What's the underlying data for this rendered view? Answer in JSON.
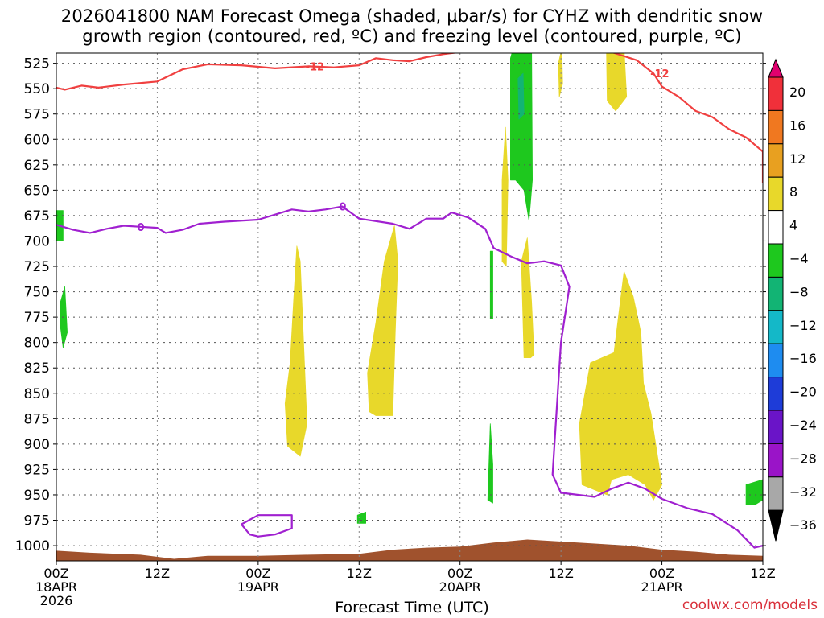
{
  "title_line1": "2026041800 NAM Forecast Omega (shaded, µbar/s) for CYHZ with dendritic snow",
  "title_line2": "growth region (contoured, red, ºC) and freezing level (contoured, purple, ºC)",
  "credit": "coolwx.com/models",
  "chart_data": {
    "type": "time-height cross section",
    "title": "2026041800 NAM Forecast Omega (shaded, µbar/s) for CYHZ with dendritic snow growth region (contoured, red, ºC) and freezing level (contoured, purple, ºC)",
    "xlabel": "Forecast Time (UTC)",
    "ylabel": "",
    "x_ticks": [
      {
        "hour": 0,
        "label": "00Z",
        "date": "18APR",
        "year": "2026"
      },
      {
        "hour": 12,
        "label": "12Z"
      },
      {
        "hour": 24,
        "label": "00Z",
        "date": "19APR"
      },
      {
        "hour": 36,
        "label": "12Z"
      },
      {
        "hour": 48,
        "label": "00Z",
        "date": "20APR"
      },
      {
        "hour": 60,
        "label": "12Z"
      },
      {
        "hour": 72,
        "label": "00Z",
        "date": "21APR"
      },
      {
        "hour": 84,
        "label": "12Z"
      }
    ],
    "xlim": [
      0,
      84
    ],
    "y_ticks": [
      525,
      550,
      575,
      600,
      625,
      650,
      675,
      700,
      725,
      750,
      775,
      800,
      825,
      850,
      875,
      900,
      925,
      950,
      975,
      1000
    ],
    "ylim": [
      515,
      1015
    ],
    "grid": true,
    "colorbar": {
      "labels": [
        "20",
        "16",
        "12",
        "8",
        "4",
        "−4",
        "−8",
        "−12",
        "−16",
        "−20",
        "−24",
        "−28",
        "−32",
        "−36"
      ],
      "colors": [
        "#e0006e",
        "#f0303a",
        "#f07820",
        "#e8a020",
        "#e8d82a",
        "#ffffff",
        "#1ec81e",
        "#12b474",
        "#14b8c8",
        "#1e8cf0",
        "#1e3cd8",
        "#6a14c8",
        "#9a14c8",
        "#a8a8a8",
        "#000000"
      ]
    },
    "contours": [
      {
        "name": "-12 °C",
        "label": "-12",
        "color": "#f04040",
        "points": [
          [
            0,
            549
          ],
          [
            1,
            551
          ],
          [
            3,
            547
          ],
          [
            5,
            549
          ],
          [
            8,
            546
          ],
          [
            12,
            543
          ],
          [
            15,
            531
          ],
          [
            18,
            526
          ],
          [
            22,
            527
          ],
          [
            26,
            530
          ],
          [
            30,
            528
          ],
          [
            33,
            529
          ],
          [
            36,
            527
          ],
          [
            38,
            520
          ],
          [
            40,
            522
          ],
          [
            42,
            523
          ],
          [
            44,
            519
          ],
          [
            46,
            516
          ],
          [
            48,
            514
          ]
        ]
      },
      {
        "name": "-12 °C (east)",
        "label": "-12",
        "color": "#f04040",
        "points": [
          [
            66,
            514
          ],
          [
            69,
            522
          ],
          [
            71,
            535
          ],
          [
            72,
            548
          ],
          [
            74,
            558
          ],
          [
            76,
            572
          ],
          [
            78,
            578
          ],
          [
            80,
            590
          ],
          [
            82,
            598
          ],
          [
            84,
            612
          ],
          [
            84,
            643
          ]
        ]
      },
      {
        "name": "0 °C (freezing level)",
        "label": "0",
        "color": "#a020d0",
        "points": [
          [
            0,
            684
          ],
          [
            2,
            689
          ],
          [
            4,
            692
          ],
          [
            6,
            688
          ],
          [
            8,
            685
          ],
          [
            10,
            686
          ],
          [
            12,
            687
          ],
          [
            13,
            692
          ],
          [
            15,
            689
          ],
          [
            17,
            683
          ],
          [
            20,
            681
          ],
          [
            24,
            679
          ],
          [
            26,
            674
          ],
          [
            28,
            669
          ],
          [
            30,
            671
          ],
          [
            32,
            669
          ],
          [
            34,
            666
          ],
          [
            36,
            678
          ],
          [
            40,
            683
          ],
          [
            42,
            688
          ],
          [
            44,
            678
          ],
          [
            46,
            678
          ],
          [
            47,
            672
          ],
          [
            49,
            677
          ],
          [
            51,
            688
          ],
          [
            52,
            707
          ],
          [
            54,
            715
          ],
          [
            56,
            722
          ],
          [
            58,
            720
          ],
          [
            60,
            724
          ],
          [
            61,
            745
          ],
          [
            60,
            800
          ],
          [
            59,
            930
          ],
          [
            60,
            948
          ],
          [
            64,
            952
          ],
          [
            66,
            944
          ],
          [
            68,
            938
          ],
          [
            70,
            944
          ],
          [
            72,
            954
          ],
          [
            75,
            963
          ],
          [
            78,
            969
          ],
          [
            81,
            985
          ],
          [
            83,
            1002
          ],
          [
            84,
            1000
          ]
        ]
      },
      {
        "name": "0 °C (closed)",
        "label": "",
        "color": "#a020d0",
        "points": [
          [
            22,
            979
          ],
          [
            24,
            970
          ],
          [
            28,
            970
          ],
          [
            28,
            983
          ],
          [
            26,
            989
          ],
          [
            24,
            991
          ],
          [
            23,
            989
          ],
          [
            22,
            979
          ]
        ]
      }
    ],
    "shaded_regions": [
      {
        "value_range": "4 to 8",
        "color": "#e8d82a",
        "points": [
          [
            27.5,
            902
          ],
          [
            27.2,
            860
          ],
          [
            27.8,
            820
          ],
          [
            28.2,
            760
          ],
          [
            28.6,
            705
          ],
          [
            29.0,
            720
          ],
          [
            29.4,
            800
          ],
          [
            29.8,
            880
          ],
          [
            29.0,
            912
          ]
        ]
      },
      {
        "name": "4 to 8",
        "value_range": "4 to 8",
        "color": "#e8d82a",
        "points": [
          [
            37.2,
            868
          ],
          [
            37.0,
            830
          ],
          [
            38.0,
            780
          ],
          [
            39.0,
            720
          ],
          [
            40.2,
            685
          ],
          [
            40.6,
            720
          ],
          [
            40.3,
            790
          ],
          [
            40.0,
            872
          ],
          [
            38.0,
            872
          ]
        ]
      },
      {
        "value_range": "4 to 8",
        "color": "#e8d82a",
        "points": [
          [
            53.0,
            720
          ],
          [
            53.0,
            640
          ],
          [
            53.4,
            588
          ],
          [
            53.7,
            640
          ],
          [
            53.5,
            725
          ]
        ]
      },
      {
        "value_range": "4 to 8",
        "color": "#e8d82a",
        "points": [
          [
            55.6,
            815
          ],
          [
            55.3,
            720
          ],
          [
            56.0,
            697
          ],
          [
            56.5,
            760
          ],
          [
            56.8,
            812
          ],
          [
            56.4,
            815
          ]
        ]
      },
      {
        "value_range": "4 to 8",
        "color": "#e8d82a",
        "points": [
          [
            59.8,
            558
          ],
          [
            59.7,
            525
          ],
          [
            60.1,
            510
          ],
          [
            60.2,
            545
          ]
        ]
      },
      {
        "value_range": "4 to 8",
        "color": "#e8d82a",
        "points": [
          [
            65.5,
            562
          ],
          [
            65.4,
            510
          ],
          [
            67.5,
            510
          ],
          [
            67.8,
            558
          ],
          [
            66.5,
            572
          ]
        ]
      },
      {
        "value_range": "4 to 8",
        "color": "#e8d82a",
        "points": [
          [
            62.5,
            940
          ],
          [
            62.2,
            880
          ],
          [
            63.5,
            820
          ],
          [
            66.3,
            810
          ],
          [
            67.5,
            730
          ],
          [
            68.6,
            755
          ],
          [
            69.5,
            790
          ],
          [
            69.8,
            840
          ],
          [
            70.7,
            870
          ],
          [
            72.0,
            940
          ],
          [
            71.0,
            955
          ],
          [
            70.0,
            940
          ],
          [
            68.0,
            930
          ],
          [
            66.0,
            935
          ],
          [
            65.5,
            950
          ],
          [
            64.0,
            945
          ]
        ]
      },
      {
        "value_range": "-4 to -8",
        "color": "#1ec81e",
        "points": [
          [
            0,
            670
          ],
          [
            0.8,
            670
          ],
          [
            0.8,
            700
          ],
          [
            0,
            700
          ]
        ]
      },
      {
        "value_range": "-4 to -8",
        "color": "#1ec81e",
        "points": [
          [
            0.5,
            760
          ],
          [
            1.0,
            745
          ],
          [
            1.3,
            790
          ],
          [
            0.8,
            805
          ],
          [
            0.5,
            785
          ]
        ]
      },
      {
        "value_range": "-4 to -8",
        "color": "#1ec81e",
        "points": [
          [
            35.8,
            970
          ],
          [
            36.8,
            967
          ],
          [
            36.8,
            978
          ],
          [
            35.8,
            978
          ]
        ]
      },
      {
        "value_range": "-4 to -8",
        "color": "#1ec81e",
        "points": [
          [
            51.3,
            955
          ],
          [
            51.6,
            880
          ],
          [
            51.9,
            920
          ],
          [
            51.9,
            958
          ]
        ]
      },
      {
        "value_range": "-4 to -8",
        "color": "#1ec81e",
        "points": [
          [
            51.6,
            777
          ],
          [
            51.6,
            710
          ],
          [
            51.9,
            710
          ],
          [
            51.9,
            777
          ]
        ]
      },
      {
        "value_range": "-4 to -8",
        "color": "#1ec81e",
        "points": [
          [
            54.0,
            640
          ],
          [
            54.0,
            520
          ],
          [
            54.5,
            505
          ],
          [
            56.5,
            505
          ],
          [
            56.6,
            640
          ],
          [
            56.2,
            680
          ],
          [
            55.6,
            650
          ],
          [
            54.6,
            640
          ]
        ]
      },
      {
        "value_range": "-8 to -12",
        "color": "#12b474",
        "points": [
          [
            55.0,
            580
          ],
          [
            54.9,
            540
          ],
          [
            55.5,
            535
          ],
          [
            55.6,
            575
          ]
        ]
      },
      {
        "value_range": "-4 to -8",
        "color": "#1ec81e",
        "points": [
          [
            82.0,
            960
          ],
          [
            82.0,
            940
          ],
          [
            84.0,
            935
          ],
          [
            84.0,
            955
          ],
          [
            83.0,
            960
          ]
        ]
      }
    ],
    "terrain": {
      "color": "#a0522d",
      "points": [
        [
          0,
          1005
        ],
        [
          4,
          1007
        ],
        [
          10,
          1009
        ],
        [
          14,
          1013
        ],
        [
          18,
          1010
        ],
        [
          24,
          1010
        ],
        [
          30,
          1009
        ],
        [
          36,
          1008
        ],
        [
          40,
          1004
        ],
        [
          44,
          1002
        ],
        [
          48,
          1001
        ],
        [
          52,
          997
        ],
        [
          56,
          994
        ],
        [
          60,
          996
        ],
        [
          64,
          998
        ],
        [
          68,
          1000
        ],
        [
          72,
          1004
        ],
        [
          76,
          1006
        ],
        [
          80,
          1009
        ],
        [
          84,
          1010
        ]
      ]
    }
  }
}
